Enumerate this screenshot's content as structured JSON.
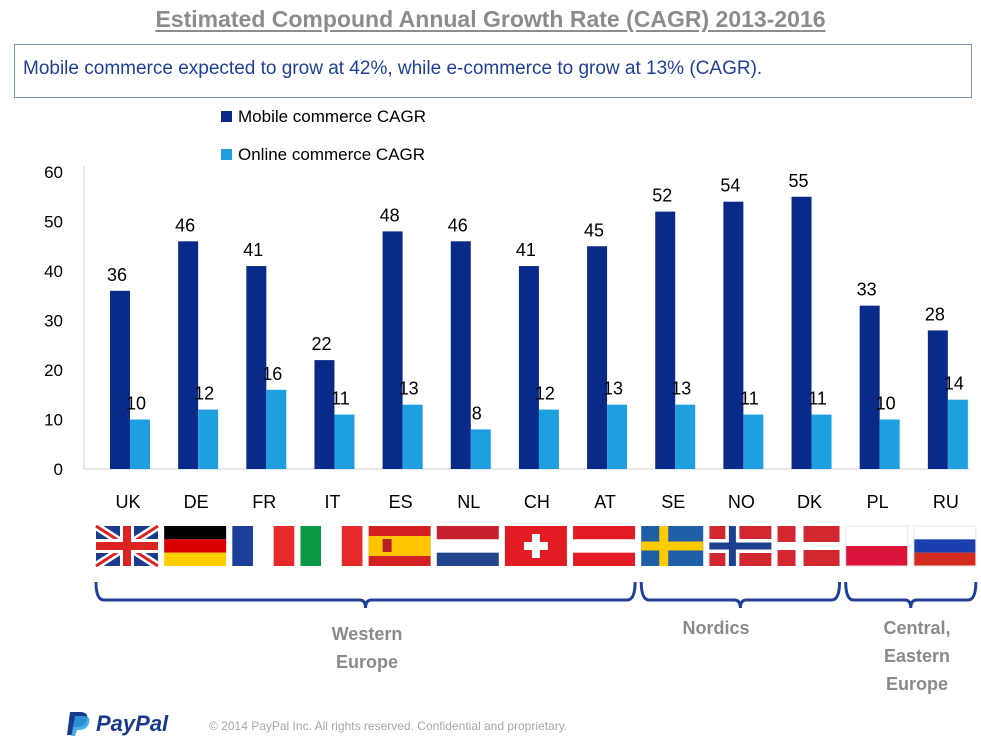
{
  "title": "Estimated Compound Annual Growth Rate (CAGR) 2013-2016",
  "subtitle": "Mobile commerce expected to grow at 42%, while e-commerce to grow at 13% (CAGR).",
  "chart_data": {
    "type": "bar",
    "categories": [
      "UK",
      "DE",
      "FR",
      "IT",
      "ES",
      "NL",
      "CH",
      "AT",
      "SE",
      "NO",
      "DK",
      "PL",
      "RU"
    ],
    "series": [
      {
        "name": "Mobile commerce CAGR",
        "color": "#0a2a8a",
        "values": [
          36,
          46,
          41,
          22,
          48,
          46,
          41,
          45,
          52,
          54,
          55,
          33,
          28
        ]
      },
      {
        "name": "Online commerce CAGR",
        "color": "#1ea0e0",
        "values": [
          10,
          12,
          16,
          11,
          13,
          8,
          12,
          13,
          13,
          11,
          11,
          10,
          14
        ]
      }
    ],
    "ylim": [
      0,
      60
    ],
    "yticks": [
      0,
      10,
      20,
      30,
      40,
      50,
      60
    ],
    "legend_position": "top-left",
    "grid": false,
    "data_labels": true,
    "regions": [
      {
        "label": "Western Europe",
        "categories": [
          "UK",
          "DE",
          "FR",
          "IT",
          "ES",
          "NL",
          "CH",
          "AT"
        ]
      },
      {
        "label": "Nordics",
        "categories": [
          "SE",
          "NO",
          "DK"
        ]
      },
      {
        "label": "Central, Eastern Europe",
        "categories": [
          "PL",
          "RU"
        ]
      }
    ],
    "flags": [
      {
        "country": "UK",
        "icon": "uk-flag-icon"
      },
      {
        "country": "DE",
        "icon": "germany-flag-icon"
      },
      {
        "country": "FR",
        "icon": "france-flag-icon"
      },
      {
        "country": "IT",
        "icon": "italy-flag-icon"
      },
      {
        "country": "ES",
        "icon": "spain-flag-icon"
      },
      {
        "country": "NL",
        "icon": "netherlands-flag-icon"
      },
      {
        "country": "CH",
        "icon": "switzerland-flag-icon"
      },
      {
        "country": "AT",
        "icon": "austria-flag-icon"
      },
      {
        "country": "SE",
        "icon": "sweden-flag-icon"
      },
      {
        "country": "NO",
        "icon": "norway-flag-icon"
      },
      {
        "country": "DK",
        "icon": "denmark-flag-icon"
      },
      {
        "country": "PL",
        "icon": "poland-flag-icon"
      },
      {
        "country": "RU",
        "icon": "russia-flag-icon"
      }
    ]
  },
  "footer": {
    "logo_text": "PayPal",
    "copyright": "© 2014 PayPal Inc. All rights reserved. Confidential and proprietary."
  }
}
